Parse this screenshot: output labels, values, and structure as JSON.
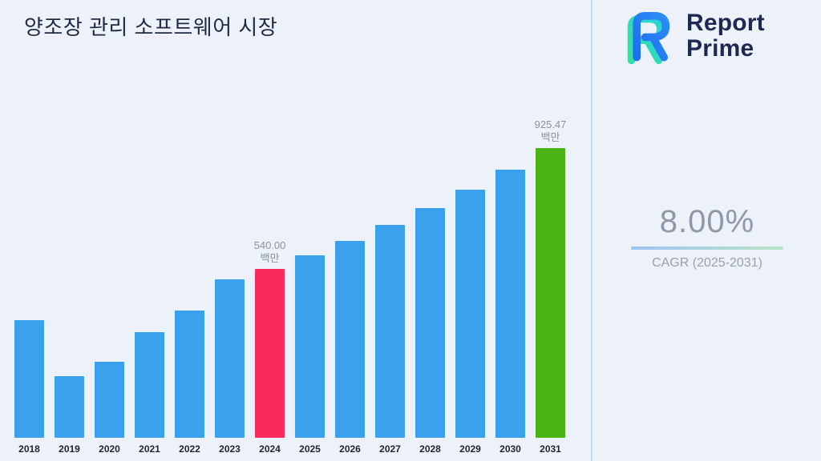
{
  "title": "양조장 관리 소프트웨어 시장",
  "brand": {
    "name_line1": "Report",
    "name_line2": "Prime"
  },
  "stats": {
    "cagr_value": "8.00%",
    "cagr_label": "CAGR (2025-2031)"
  },
  "colors": {
    "background": "#edf2fa",
    "bar_default": "#3aa2ec",
    "bar_2024": "#fa2a5f",
    "bar_2031": "#4cb414",
    "title_text": "#1e2a44",
    "annotation_text": "#8b929c",
    "divider": "#b9ddf3"
  },
  "chart_data": {
    "type": "bar",
    "title": "양조장 관리 소프트웨어 시장",
    "categories": [
      "2018",
      "2019",
      "2020",
      "2021",
      "2022",
      "2023",
      "2024",
      "2025",
      "2026",
      "2027",
      "2028",
      "2029",
      "2030",
      "2031"
    ],
    "values": [
      375,
      198,
      244,
      337,
      407,
      507,
      540,
      583.2,
      629.86,
      680.24,
      734.66,
      793.44,
      856.91,
      925.47
    ],
    "unit": "백만",
    "ylim": [
      0,
      1000
    ],
    "grid": false,
    "legend": false,
    "xlabel": "",
    "ylabel": "",
    "bar_colors": {
      "default": "#3aa2ec",
      "2024": "#fa2a5f",
      "2031": "#4cb414"
    },
    "annotations": [
      {
        "category": "2024",
        "value_label": "540.00",
        "unit_label": "백만"
      },
      {
        "category": "2031",
        "value_label": "925.47",
        "unit_label": "백만"
      }
    ]
  }
}
